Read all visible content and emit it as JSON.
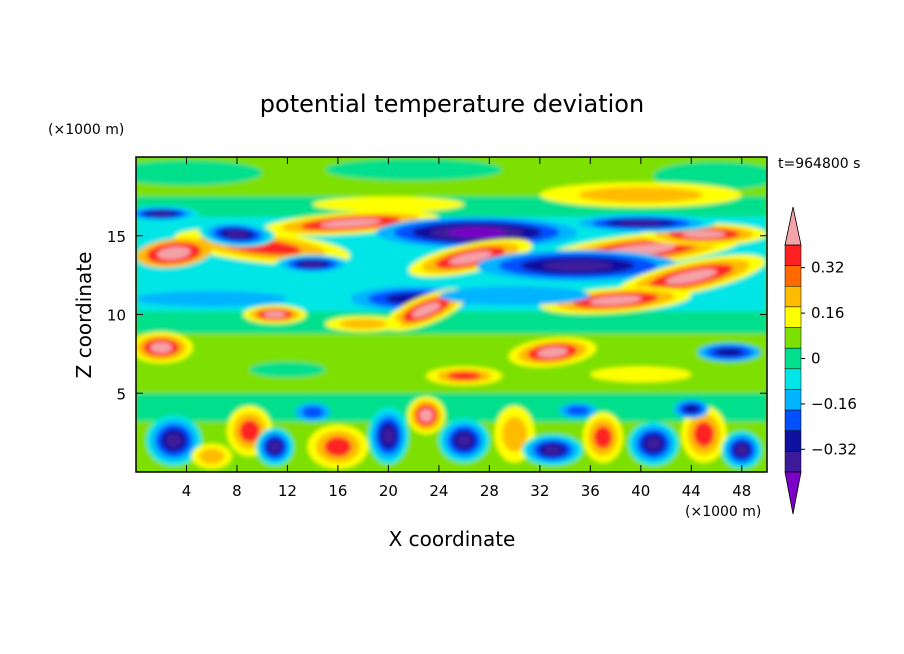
{
  "chart_data": {
    "type": "heatmap",
    "title": "potential temperature deviation",
    "xlabel": "X coordinate",
    "ylabel": "Z coordinate",
    "x_units": "(×1000 m)",
    "y_units": "(×1000 m)",
    "time_label": "t=964800 s",
    "xlim": [
      0,
      50
    ],
    "ylim": [
      0,
      20
    ],
    "x_ticks": [
      4,
      8,
      12,
      16,
      20,
      24,
      28,
      32,
      36,
      40,
      44,
      48
    ],
    "y_ticks": [
      5,
      10,
      15
    ],
    "colorbar": {
      "levels": [
        -0.4,
        -0.32,
        -0.24,
        -0.16,
        -0.08,
        0,
        0.08,
        0.16,
        0.24,
        0.32,
        0.4
      ],
      "labels": [
        "0.32",
        "0.16",
        "0",
        "−0.16",
        "−0.32"
      ],
      "label_values": [
        0.32,
        0.16,
        0,
        -0.16,
        -0.32
      ],
      "colors": [
        "#7b00c8",
        "#3c1a9b",
        "#1010a0",
        "#0050ff",
        "#00b4ff",
        "#00e6e6",
        "#00e08c",
        "#7ee000",
        "#ffff00",
        "#ffbb00",
        "#ff6a00",
        "#ff2020",
        "#f4a3a8"
      ]
    },
    "background_field": "#7ee000"
  }
}
